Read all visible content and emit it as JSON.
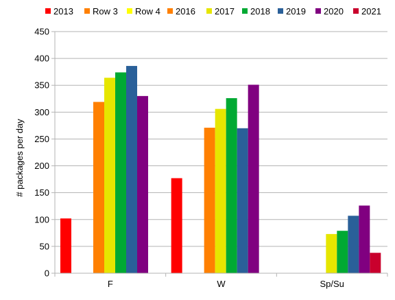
{
  "chart_data": {
    "type": "bar",
    "title": "",
    "xlabel": "",
    "ylabel": "# packages per day",
    "ylim": [
      0,
      450
    ],
    "yticks": [
      0,
      50,
      100,
      150,
      200,
      250,
      300,
      350,
      400,
      450
    ],
    "grid": true,
    "legend_position": "top",
    "categories": [
      "F",
      "W",
      "Sp/Su"
    ],
    "series": [
      {
        "name": "2013",
        "color": "#ff0000",
        "values": [
          102,
          177,
          null
        ]
      },
      {
        "name": "Row 3",
        "color": "#ff8000",
        "values": [
          null,
          null,
          null
        ]
      },
      {
        "name": "Row 4",
        "color": "#ffff00",
        "values": [
          null,
          null,
          null
        ]
      },
      {
        "name": "2016",
        "color": "#ff8000",
        "values": [
          319,
          271,
          null
        ]
      },
      {
        "name": "2017",
        "color": "#e6e600",
        "values": [
          364,
          306,
          73
        ]
      },
      {
        "name": "2018",
        "color": "#00a933",
        "values": [
          374,
          326,
          79
        ]
      },
      {
        "name": "2019",
        "color": "#2a6099",
        "values": [
          386,
          270,
          107
        ]
      },
      {
        "name": "2020",
        "color": "#800080",
        "values": [
          330,
          351,
          126
        ]
      },
      {
        "name": "2021",
        "color": "#c9002d",
        "values": [
          null,
          null,
          38
        ]
      }
    ]
  }
}
